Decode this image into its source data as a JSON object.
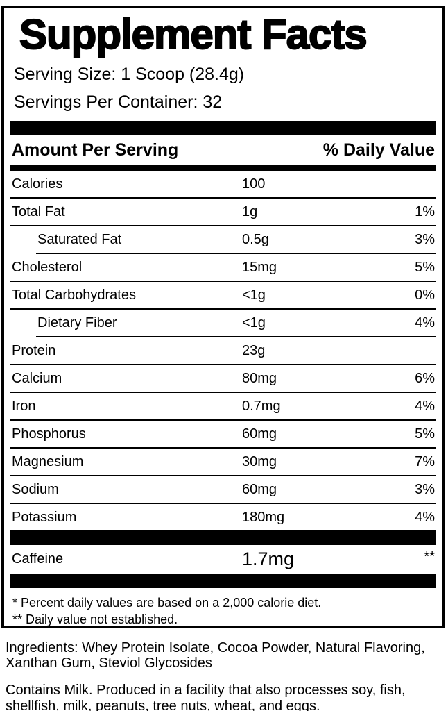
{
  "label": {
    "title": "Supplement Facts",
    "serving_size": "Serving Size: 1 Scoop (28.4g)",
    "servings_per_container": "Servings Per Container: 32",
    "header": {
      "amount_per_serving": "Amount Per Serving",
      "daily_value": "% Daily Value"
    },
    "rows": [
      {
        "name": "Calories",
        "amount": "100",
        "dv": "",
        "indent": false
      },
      {
        "name": "Total Fat",
        "amount": "1g",
        "dv": "1%",
        "indent": false
      },
      {
        "name": "Saturated Fat",
        "amount": "0.5g",
        "dv": "3%",
        "indent": true
      },
      {
        "name": "Cholesterol",
        "amount": "15mg",
        "dv": "5%",
        "indent": false
      },
      {
        "name": "Total Carbohydrates",
        "amount": "<1g",
        "dv": "0%",
        "indent": false
      },
      {
        "name": "Dietary Fiber",
        "amount": "<1g",
        "dv": "4%",
        "indent": true
      },
      {
        "name": "Protein",
        "amount": "23g",
        "dv": "",
        "indent": false
      },
      {
        "name": "Calcium",
        "amount": "80mg",
        "dv": "6%",
        "indent": false
      },
      {
        "name": "Iron",
        "amount": "0.7mg",
        "dv": "4%",
        "indent": false
      },
      {
        "name": "Phosphorus",
        "amount": "60mg",
        "dv": "5%",
        "indent": false
      },
      {
        "name": "Magnesium",
        "amount": "30mg",
        "dv": "7%",
        "indent": false
      },
      {
        "name": "Sodium",
        "amount": "60mg",
        "dv": "3%",
        "indent": false
      },
      {
        "name": "Potassium",
        "amount": "180mg",
        "dv": "4%",
        "indent": false
      }
    ],
    "caffeine_row": {
      "name": "Caffeine",
      "amount": "1.7mg",
      "dv": "**"
    },
    "footnotes": [
      "* Percent daily values are based on a 2,000 calorie diet.",
      "** Daily value not established."
    ]
  },
  "below": {
    "ingredients": "Ingredients: Whey Protein Isolate, Cocoa Powder, Natural Flavoring, Xanthan Gum, Steviol Glycosides",
    "allergens": "Contains Milk. Produced in a facility that also processes soy, fish, shellfish, milk, peanuts, tree nuts, wheat, and eggs."
  },
  "colors": {
    "border": "#000000",
    "background": "#ffffff",
    "text": "#000000"
  }
}
